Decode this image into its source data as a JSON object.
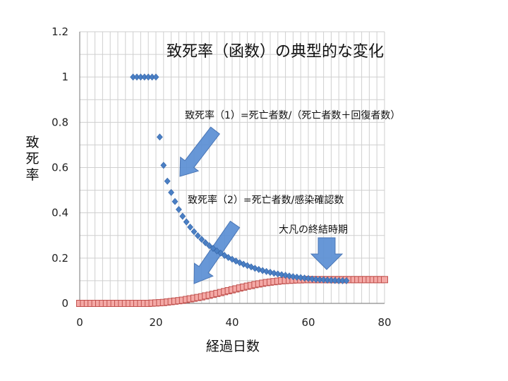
{
  "chart_data": {
    "type": "scatter",
    "title": "致死率（函数）の典型的な変化",
    "xlabel": "経過日数",
    "ylabel": "致死率",
    "xlim": [
      0,
      80
    ],
    "ylim": [
      0,
      1.2
    ],
    "xticks": [
      "0",
      "20",
      "40",
      "60",
      "80"
    ],
    "yticks": [
      "0",
      "0.2",
      "0.4",
      "0.6",
      "0.8",
      "1",
      "1.2"
    ],
    "grid": true,
    "colors": {
      "series1": "#4a7fc4",
      "series2": "#c0504d",
      "series2_fill": "#f4a9a6",
      "arrow": "#5b8fd4"
    },
    "series": [
      {
        "name": "致死率（1）=死亡者数/（死亡者数＋回復者数）",
        "marker": "diamond",
        "x": [
          14,
          15,
          16,
          17,
          18,
          19,
          20,
          21,
          22,
          23,
          24,
          25,
          26,
          27,
          28,
          29,
          30,
          31,
          32,
          33,
          34,
          35,
          36,
          37,
          38,
          39,
          40,
          41,
          42,
          43,
          44,
          45,
          46,
          47,
          48,
          49,
          50,
          51,
          52,
          53,
          54,
          55,
          56,
          57,
          58,
          59,
          60,
          61,
          62,
          63,
          64,
          65,
          66,
          67,
          68,
          69,
          70
        ],
        "y": [
          1,
          1,
          1,
          1,
          1,
          1,
          1,
          0.735,
          0.61,
          0.54,
          0.49,
          0.45,
          0.415,
          0.385,
          0.36,
          0.337,
          0.317,
          0.299,
          0.283,
          0.268,
          0.255,
          0.243,
          0.232,
          0.222,
          0.212,
          0.203,
          0.195,
          0.187,
          0.18,
          0.173,
          0.167,
          0.161,
          0.155,
          0.15,
          0.145,
          0.141,
          0.137,
          0.133,
          0.13,
          0.127,
          0.124,
          0.121,
          0.118,
          0.116,
          0.114,
          0.112,
          0.11,
          0.108,
          0.106,
          0.105,
          0.104,
          0.103,
          0.102,
          0.101,
          0.1,
          0.1,
          0.1
        ]
      },
      {
        "name": "致死率（2）=死亡者数/感染確認数",
        "marker": "square",
        "x": [
          0,
          1,
          2,
          3,
          4,
          5,
          6,
          7,
          8,
          9,
          10,
          11,
          12,
          13,
          14,
          15,
          16,
          17,
          18,
          19,
          20,
          21,
          22,
          23,
          24,
          25,
          26,
          27,
          28,
          29,
          30,
          31,
          32,
          33,
          34,
          35,
          36,
          37,
          38,
          39,
          40,
          41,
          42,
          43,
          44,
          45,
          46,
          47,
          48,
          49,
          50,
          51,
          52,
          53,
          54,
          55,
          56,
          57,
          58,
          59,
          60,
          61,
          62,
          63,
          64,
          65,
          66,
          67,
          68,
          69,
          70,
          71,
          72,
          73,
          74,
          75,
          76,
          77,
          78,
          79,
          80
        ],
        "y": [
          0,
          0,
          0,
          0,
          0,
          0,
          0,
          0,
          0,
          0,
          0,
          0,
          0,
          0,
          0,
          0,
          0,
          0,
          0,
          0.001,
          0.002,
          0.003,
          0.004,
          0.006,
          0.008,
          0.01,
          0.012,
          0.014,
          0.017,
          0.02,
          0.023,
          0.026,
          0.029,
          0.033,
          0.036,
          0.04,
          0.044,
          0.048,
          0.052,
          0.056,
          0.06,
          0.064,
          0.068,
          0.072,
          0.076,
          0.079,
          0.083,
          0.086,
          0.089,
          0.092,
          0.094,
          0.096,
          0.098,
          0.1,
          0.101,
          0.102,
          0.103,
          0.104,
          0.104,
          0.105,
          0.105,
          0.105,
          0.105,
          0.105,
          0.105,
          0.105,
          0.105,
          0.105,
          0.105,
          0.105,
          0.105,
          0.105,
          0.105,
          0.105,
          0.105,
          0.105,
          0.105,
          0.105,
          0.105,
          0.105,
          0.105
        ]
      }
    ],
    "annotations": {
      "label1": "致死率（1）=死亡者数/（死亡者数＋回復者数）",
      "label2": "致死率（2）=死亡者数/感染確認数",
      "label3": "大凡の終結時期"
    }
  }
}
